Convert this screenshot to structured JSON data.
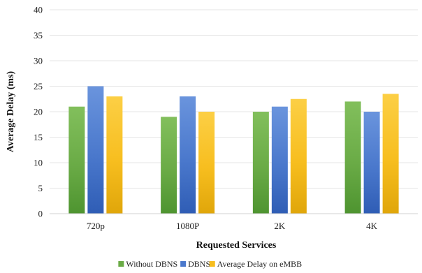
{
  "chart_data": {
    "type": "bar",
    "title": "",
    "xlabel": "Requested Services",
    "ylabel": "Average Delay (ms)",
    "categories": [
      "720p",
      "1080P",
      "2K",
      "4K"
    ],
    "ylim": [
      0,
      40
    ],
    "yticks": [
      0,
      5,
      10,
      15,
      20,
      25,
      30,
      35,
      40
    ],
    "grid": true,
    "legend_position": "bottom",
    "series": [
      {
        "name": "Without DBNS",
        "values": [
          21,
          19,
          20,
          22
        ],
        "color": "#6aab46",
        "color_light": "#82bf5c",
        "color_dark": "#4e9430"
      },
      {
        "name": "DBNS",
        "values": [
          25,
          23,
          21,
          20
        ],
        "color": "#4a78cc",
        "color_light": "#6a94dd",
        "color_dark": "#2f5db5"
      },
      {
        "name": "Average Delay on eMBB",
        "values": [
          23,
          20,
          22.5,
          23.5
        ],
        "color": "#f7be1f",
        "color_light": "#fccf45",
        "color_dark": "#e0a60a"
      }
    ]
  }
}
